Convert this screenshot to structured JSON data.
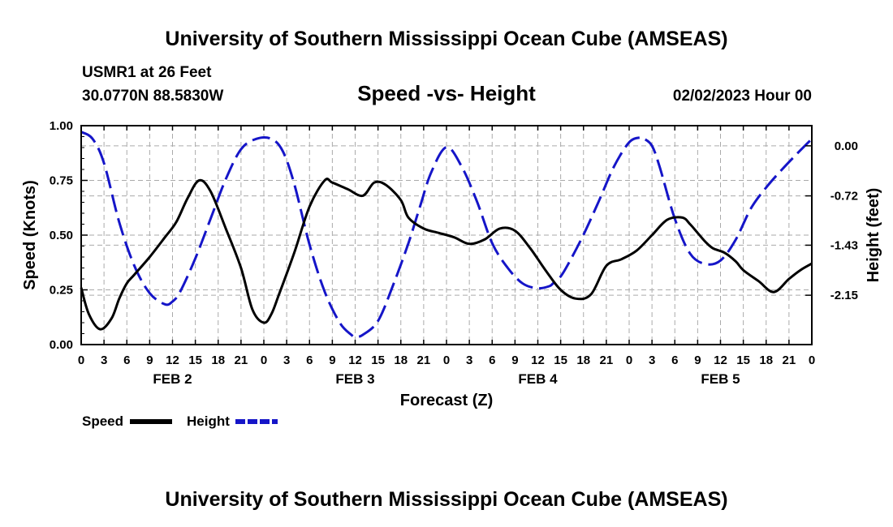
{
  "header": {
    "title": "University of Southern Mississippi Ocean Cube (AMSEAS)",
    "station": "USMR1 at 26 Feet",
    "coords": "30.0770N  88.5830W",
    "subtitle": "Speed -vs- Height",
    "datetime": "02/02/2023 Hour 00"
  },
  "footer": {
    "title": "University of Southern Mississippi Ocean Cube (AMSEAS)"
  },
  "colors": {
    "speed": "#000000",
    "height": "#1515c8",
    "grid": "#aaaaaa"
  },
  "chart_data": {
    "type": "line",
    "title": "Speed -vs- Height",
    "xlabel": "Forecast (Z)",
    "ylabel": "Speed (Knots)",
    "y2label": "Height (feet)",
    "x_range_hours": [
      0,
      96
    ],
    "x_tick_labels": [
      "0",
      "3",
      "6",
      "9",
      "12",
      "15",
      "18",
      "21",
      "0",
      "3",
      "6",
      "9",
      "12",
      "15",
      "18",
      "21",
      "0",
      "3",
      "6",
      "9",
      "12",
      "15",
      "18",
      "21",
      "0",
      "3",
      "6",
      "9",
      "12",
      "15",
      "18",
      "21",
      "0"
    ],
    "day_labels": [
      "FEB 2",
      "FEB 3",
      "FEB 4",
      "FEB 5"
    ],
    "ylim": [
      0,
      1
    ],
    "y_ticks": [
      "0.00",
      "0.25",
      "0.50",
      "0.75",
      "1.00"
    ],
    "y2lim": [
      -2.86,
      0.29
    ],
    "y2_ticks": [
      "0.00",
      "-0.72",
      "-1.43",
      "-2.15"
    ],
    "y2_tick_values": [
      0.0,
      -0.72,
      -1.43,
      -2.15
    ],
    "legend": [
      "Speed",
      "Height"
    ],
    "series": [
      {
        "name": "Speed",
        "x": [
          0,
          1,
          2.5,
          4,
          5,
          6,
          7,
          9,
          11,
          12.5,
          14,
          15.5,
          17,
          19,
          21,
          22.5,
          24,
          25,
          26,
          28,
          30,
          32,
          33,
          35,
          37,
          38.5,
          40,
          42,
          43,
          45,
          47,
          49,
          51,
          53,
          55,
          57,
          59,
          61,
          63,
          65,
          67,
          69,
          71,
          73,
          75,
          77,
          79,
          80,
          81,
          82,
          83,
          84.5,
          86,
          87,
          89,
          91,
          93,
          94.5,
          96
        ],
        "values": [
          0.26,
          0.14,
          0.07,
          0.12,
          0.21,
          0.28,
          0.32,
          0.4,
          0.49,
          0.56,
          0.67,
          0.75,
          0.7,
          0.53,
          0.35,
          0.16,
          0.1,
          0.14,
          0.23,
          0.42,
          0.63,
          0.75,
          0.74,
          0.71,
          0.68,
          0.74,
          0.73,
          0.66,
          0.58,
          0.53,
          0.51,
          0.49,
          0.46,
          0.48,
          0.53,
          0.52,
          0.44,
          0.34,
          0.25,
          0.21,
          0.23,
          0.36,
          0.39,
          0.43,
          0.5,
          0.57,
          0.58,
          0.55,
          0.51,
          0.47,
          0.44,
          0.42,
          0.38,
          0.34,
          0.29,
          0.24,
          0.3,
          0.34,
          0.37
        ]
      },
      {
        "name": "Height",
        "x": [
          0,
          1.5,
          3,
          5,
          7,
          9,
          11,
          12,
          13,
          15,
          17,
          19,
          21,
          23,
          25,
          26.5,
          28,
          30,
          32,
          34,
          35.5,
          36,
          37,
          39,
          41,
          43,
          44.5,
          46,
          48,
          50,
          52,
          54,
          56,
          58,
          60,
          61.5,
          62,
          63,
          64,
          66,
          68,
          70,
          72,
          73.5,
          74,
          75,
          76,
          78,
          80,
          82,
          84,
          86,
          88,
          90,
          92,
          94,
          96
        ],
        "values": [
          0.2,
          0.1,
          -0.25,
          -1.1,
          -1.73,
          -2.12,
          -2.28,
          -2.24,
          -2.1,
          -1.62,
          -1.05,
          -0.48,
          -0.05,
          0.1,
          0.1,
          -0.08,
          -0.55,
          -1.42,
          -2.1,
          -2.55,
          -2.72,
          -2.75,
          -2.72,
          -2.52,
          -2.0,
          -1.4,
          -0.88,
          -0.38,
          -0.02,
          -0.3,
          -0.8,
          -1.4,
          -1.75,
          -1.98,
          -2.05,
          -2.02,
          -1.98,
          -1.88,
          -1.7,
          -1.28,
          -0.8,
          -0.3,
          0.05,
          0.12,
          0.1,
          0.0,
          -0.3,
          -1.05,
          -1.55,
          -1.7,
          -1.65,
          -1.35,
          -0.9,
          -0.6,
          -0.35,
          -0.12,
          0.1
        ]
      }
    ]
  }
}
